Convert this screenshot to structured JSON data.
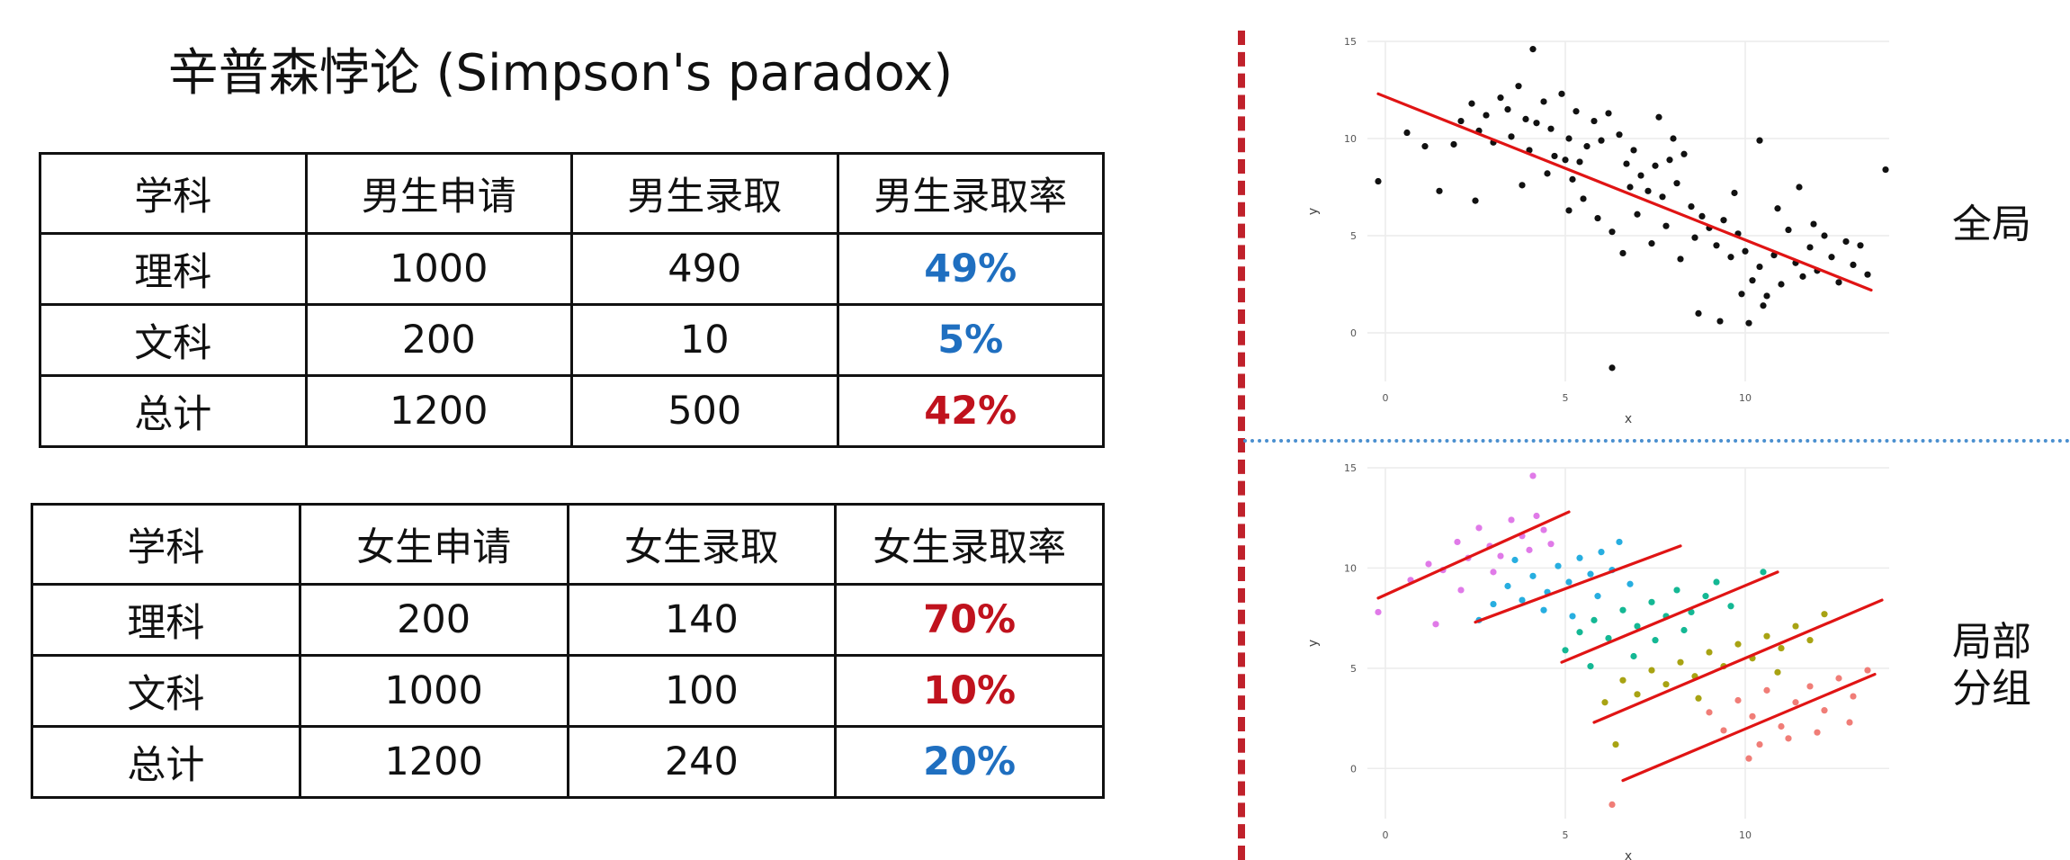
{
  "title": "辛普森悖论 (Simpson's paradox)",
  "colors": {
    "blue_rate": "#1f6fc0",
    "red_rate": "#c0121d",
    "divider_red": "#c0212b",
    "divider_blue": "#4a8fcf",
    "fit_line": "#e01414",
    "point": "#111111",
    "group_colors": [
      "#e07ae8",
      "#27aee0",
      "#14b894",
      "#a8a313",
      "#f07d77"
    ]
  },
  "male_table": {
    "headers": [
      "学科",
      "男生申请",
      "男生录取",
      "男生录取率"
    ],
    "rows": [
      {
        "subject": "理科",
        "applied": "1000",
        "admitted": "490",
        "rate": "49%"
      },
      {
        "subject": "文科",
        "applied": "200",
        "admitted": "10",
        "rate": "5%"
      },
      {
        "subject": "总计",
        "applied": "1200",
        "admitted": "500",
        "rate": "42%"
      }
    ]
  },
  "female_table": {
    "headers": [
      "学科",
      "女生申请",
      "女生录取",
      "女生录取率"
    ],
    "rows": [
      {
        "subject": "理科",
        "applied": "200",
        "admitted": "140",
        "rate": "70%"
      },
      {
        "subject": "文科",
        "applied": "1000",
        "admitted": "100",
        "rate": "10%"
      },
      {
        "subject": "总计",
        "applied": "1200",
        "admitted": "240",
        "rate": "20%"
      }
    ]
  },
  "labels": {
    "global": "全局",
    "local_line1": "局部",
    "local_line2": "分组"
  },
  "chart_data": [
    {
      "type": "scatter",
      "xlabel": "x",
      "ylabel": "y",
      "xlim": [
        -0.5,
        14
      ],
      "ylim": [
        -2.5,
        15
      ],
      "xticks": [
        0,
        5,
        10
      ],
      "yticks": [
        0,
        5,
        10,
        15
      ],
      "grid": true,
      "fit_line": {
        "x": [
          -0.2,
          13.5
        ],
        "y": [
          12.3,
          2.2
        ]
      },
      "series": [
        {
          "color": "#111111",
          "points": [
            [
              -0.2,
              7.8
            ],
            [
              0.6,
              10.3
            ],
            [
              1.1,
              9.6
            ],
            [
              1.5,
              7.3
            ],
            [
              1.9,
              9.7
            ],
            [
              2.1,
              10.9
            ],
            [
              2.4,
              11.8
            ],
            [
              2.6,
              10.4
            ],
            [
              2.8,
              11.2
            ],
            [
              3.0,
              9.8
            ],
            [
              3.2,
              12.1
            ],
            [
              3.4,
              11.5
            ],
            [
              3.5,
              10.1
            ],
            [
              3.7,
              12.7
            ],
            [
              3.9,
              11.0
            ],
            [
              4.0,
              9.4
            ],
            [
              4.2,
              10.8
            ],
            [
              4.4,
              11.9
            ],
            [
              4.6,
              10.5
            ],
            [
              4.7,
              9.1
            ],
            [
              4.9,
              12.3
            ],
            [
              5.1,
              10.0
            ],
            [
              5.3,
              11.4
            ],
            [
              5.4,
              8.8
            ],
            [
              5.6,
              9.6
            ],
            [
              5.8,
              10.9
            ],
            [
              6.0,
              9.9
            ],
            [
              2.5,
              6.8
            ],
            [
              3.8,
              7.6
            ],
            [
              4.5,
              8.2
            ],
            [
              5.2,
              7.9
            ],
            [
              5.5,
              6.9
            ],
            [
              4.1,
              14.6
            ],
            [
              6.2,
              11.3
            ],
            [
              6.5,
              10.2
            ],
            [
              6.7,
              8.7
            ],
            [
              6.9,
              9.4
            ],
            [
              7.1,
              8.1
            ],
            [
              7.3,
              7.3
            ],
            [
              7.5,
              8.6
            ],
            [
              7.7,
              7.0
            ],
            [
              7.9,
              8.9
            ],
            [
              8.1,
              7.7
            ],
            [
              8.3,
              9.2
            ],
            [
              8.5,
              6.5
            ],
            [
              5.1,
              6.3
            ],
            [
              5.9,
              5.9
            ],
            [
              6.3,
              5.2
            ],
            [
              6.6,
              4.1
            ],
            [
              7.0,
              6.1
            ],
            [
              7.4,
              4.6
            ],
            [
              7.8,
              5.5
            ],
            [
              8.2,
              3.8
            ],
            [
              8.6,
              4.9
            ],
            [
              8.8,
              6.0
            ],
            [
              9.0,
              5.4
            ],
            [
              9.2,
              4.5
            ],
            [
              9.4,
              5.8
            ],
            [
              9.6,
              3.9
            ],
            [
              9.8,
              5.1
            ],
            [
              10.0,
              4.2
            ],
            [
              10.2,
              2.7
            ],
            [
              10.4,
              3.4
            ],
            [
              10.6,
              1.9
            ],
            [
              10.8,
              4.0
            ],
            [
              11.0,
              2.5
            ],
            [
              11.2,
              5.3
            ],
            [
              11.4,
              3.6
            ],
            [
              11.6,
              2.9
            ],
            [
              11.8,
              4.4
            ],
            [
              12.0,
              3.2
            ],
            [
              12.2,
              5.0
            ],
            [
              12.4,
              3.9
            ],
            [
              12.6,
              2.6
            ],
            [
              12.8,
              4.7
            ],
            [
              13.0,
              3.5
            ],
            [
              13.2,
              4.5
            ],
            [
              13.4,
              3.0
            ],
            [
              8.7,
              1.0
            ],
            [
              9.3,
              0.6
            ],
            [
              10.1,
              0.5
            ],
            [
              10.5,
              1.4
            ],
            [
              9.9,
              2.0
            ],
            [
              6.3,
              -1.8
            ],
            [
              11.5,
              7.5
            ],
            [
              10.4,
              9.9
            ],
            [
              13.9,
              8.4
            ],
            [
              7.6,
              11.1
            ],
            [
              8.0,
              10.0
            ],
            [
              6.8,
              7.5
            ],
            [
              5.0,
              8.9
            ],
            [
              9.7,
              7.2
            ],
            [
              10.9,
              6.4
            ],
            [
              11.9,
              5.6
            ]
          ]
        }
      ]
    },
    {
      "type": "scatter",
      "xlabel": "x",
      "ylabel": "y",
      "xlim": [
        -0.5,
        14
      ],
      "ylim": [
        -2.5,
        15
      ],
      "xticks": [
        0,
        5,
        10
      ],
      "yticks": [
        0,
        5,
        10,
        15
      ],
      "grid": true,
      "fit_lines": [
        {
          "x": [
            -0.2,
            5.1
          ],
          "y": [
            8.5,
            12.8
          ]
        },
        {
          "x": [
            2.5,
            8.2
          ],
          "y": [
            7.3,
            11.1
          ]
        },
        {
          "x": [
            4.9,
            10.9
          ],
          "y": [
            5.3,
            9.8
          ]
        },
        {
          "x": [
            5.8,
            13.8
          ],
          "y": [
            2.3,
            8.4
          ]
        },
        {
          "x": [
            6.6,
            13.6
          ],
          "y": [
            -0.6,
            4.7
          ]
        }
      ],
      "series": [
        {
          "color": "#e07ae8",
          "points": [
            [
              -0.2,
              7.8
            ],
            [
              0.7,
              9.4
            ],
            [
              1.2,
              10.2
            ],
            [
              1.6,
              9.9
            ],
            [
              2.0,
              11.3
            ],
            [
              2.3,
              10.5
            ],
            [
              2.6,
              12.0
            ],
            [
              2.9,
              11.1
            ],
            [
              3.2,
              10.6
            ],
            [
              3.5,
              12.4
            ],
            [
              3.8,
              11.6
            ],
            [
              4.0,
              10.9
            ],
            [
              4.2,
              12.6
            ],
            [
              4.4,
              11.9
            ],
            [
              4.1,
              14.6
            ],
            [
              2.1,
              8.9
            ],
            [
              3.0,
              9.8
            ],
            [
              4.6,
              11.2
            ],
            [
              1.4,
              7.2
            ]
          ]
        },
        {
          "color": "#27aee0",
          "points": [
            [
              2.6,
              7.4
            ],
            [
              3.0,
              8.2
            ],
            [
              3.4,
              9.1
            ],
            [
              3.8,
              8.4
            ],
            [
              4.1,
              9.6
            ],
            [
              4.5,
              8.8
            ],
            [
              4.8,
              10.1
            ],
            [
              5.1,
              9.3
            ],
            [
              5.4,
              10.5
            ],
            [
              5.7,
              9.7
            ],
            [
              6.0,
              10.8
            ],
            [
              6.3,
              9.9
            ],
            [
              6.5,
              11.3
            ],
            [
              5.2,
              7.6
            ],
            [
              4.4,
              7.9
            ],
            [
              6.8,
              9.2
            ],
            [
              3.6,
              10.4
            ],
            [
              5.9,
              8.6
            ]
          ]
        },
        {
          "color": "#14b894",
          "points": [
            [
              5.0,
              5.9
            ],
            [
              5.4,
              6.8
            ],
            [
              5.8,
              7.4
            ],
            [
              6.2,
              6.5
            ],
            [
              6.6,
              7.9
            ],
            [
              7.0,
              7.1
            ],
            [
              7.4,
              8.3
            ],
            [
              7.8,
              7.6
            ],
            [
              8.1,
              8.9
            ],
            [
              8.5,
              7.8
            ],
            [
              8.9,
              8.6
            ],
            [
              9.2,
              9.3
            ],
            [
              9.6,
              8.1
            ],
            [
              6.9,
              5.6
            ],
            [
              7.5,
              6.4
            ],
            [
              8.3,
              6.9
            ],
            [
              10.5,
              9.8
            ],
            [
              5.7,
              5.1
            ]
          ]
        },
        {
          "color": "#a8a313",
          "points": [
            [
              6.1,
              3.3
            ],
            [
              6.6,
              4.4
            ],
            [
              7.0,
              3.7
            ],
            [
              7.4,
              4.9
            ],
            [
              7.8,
              4.2
            ],
            [
              8.2,
              5.3
            ],
            [
              8.6,
              4.6
            ],
            [
              9.0,
              5.8
            ],
            [
              9.4,
              5.1
            ],
            [
              9.8,
              6.2
            ],
            [
              10.2,
              5.5
            ],
            [
              10.6,
              6.6
            ],
            [
              11.0,
              6.0
            ],
            [
              11.4,
              7.1
            ],
            [
              11.8,
              6.4
            ],
            [
              12.2,
              7.7
            ],
            [
              6.4,
              1.2
            ],
            [
              8.7,
              3.5
            ],
            [
              10.9,
              4.8
            ]
          ]
        },
        {
          "color": "#f07d77",
          "points": [
            [
              9.0,
              2.8
            ],
            [
              9.4,
              1.9
            ],
            [
              9.8,
              3.4
            ],
            [
              10.2,
              2.6
            ],
            [
              10.6,
              3.9
            ],
            [
              11.0,
              2.1
            ],
            [
              11.4,
              3.3
            ],
            [
              11.8,
              4.1
            ],
            [
              12.2,
              2.9
            ],
            [
              12.6,
              4.5
            ],
            [
              13.0,
              3.6
            ],
            [
              13.4,
              4.9
            ],
            [
              10.4,
              1.2
            ],
            [
              11.2,
              1.5
            ],
            [
              12.0,
              1.8
            ],
            [
              12.9,
              2.3
            ],
            [
              10.1,
              0.5
            ],
            [
              6.3,
              -1.8
            ]
          ]
        }
      ]
    }
  ]
}
